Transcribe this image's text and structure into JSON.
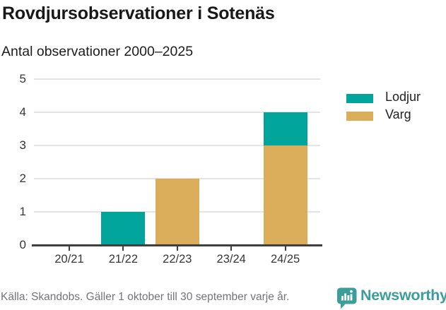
{
  "title": "Rovdjursobservationer i Sotenäs",
  "subtitle": "Antal observationer 2000–2025",
  "source_note": "Källa: Skandobs. Gäller 1 oktober till 30 september varje år.",
  "branding": {
    "name": "Newsworthy",
    "icon": "speech-bubble-bar-chart-icon",
    "color": "#3C9E9B"
  },
  "colors": {
    "lodjur": "#00A49B",
    "varg": "#DAAD5A",
    "grid": "#E4E4E4",
    "axis": "#3F3F3F",
    "tick_label": "#363636",
    "title_text": "#181818",
    "source_text": "#73737B"
  },
  "legend": [
    {
      "label": "Lodjur",
      "color": "#00A49B"
    },
    {
      "label": "Varg",
      "color": "#DAAD5A"
    }
  ],
  "chart_data": {
    "type": "bar",
    "stacked": true,
    "title": "Rovdjursobservationer i Sotenäs",
    "subtitle": "Antal observationer 2000–2025",
    "categories": [
      "20/21",
      "21/22",
      "22/23",
      "23/24",
      "24/25"
    ],
    "series": [
      {
        "name": "Varg",
        "color": "#DAAD5A",
        "values": [
          0,
          0,
          2,
          0,
          3
        ]
      },
      {
        "name": "Lodjur",
        "color": "#00A49B",
        "values": [
          0,
          1,
          0,
          0,
          1
        ]
      }
    ],
    "totals": [
      0,
      1,
      2,
      0,
      4
    ],
    "ylim": [
      0,
      5
    ],
    "yticks": [
      0,
      1,
      2,
      3,
      4,
      5
    ],
    "xlabel": "",
    "ylabel": "",
    "grid": "horizontal",
    "legend_position": "right"
  }
}
